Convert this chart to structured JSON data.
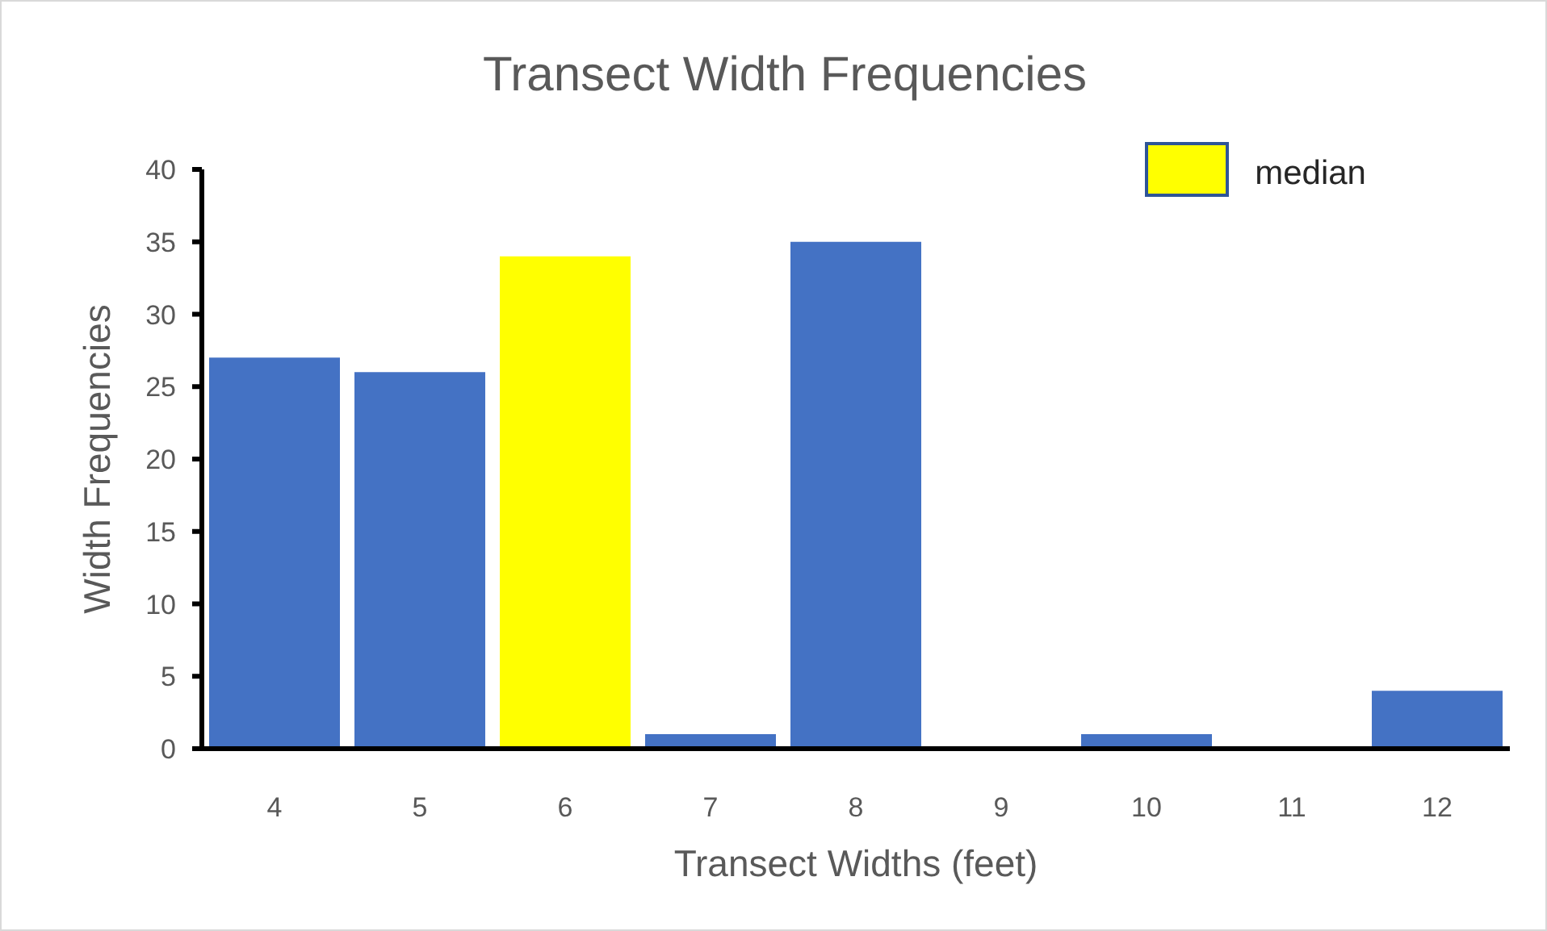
{
  "chart_data": {
    "type": "bar",
    "title": "Transect Width Frequencies",
    "xlabel": "Transect Widths (feet)",
    "ylabel": "Width Frequencies",
    "categories": [
      "4",
      "5",
      "6",
      "7",
      "8",
      "9",
      "10",
      "11",
      "12"
    ],
    "series": [
      {
        "color": "#4472c4",
        "values": [
          27,
          26,
          null,
          1,
          35,
          0,
          1,
          0,
          4
        ]
      },
      {
        "name": "median",
        "color": "#ffff00",
        "values": [
          null,
          null,
          34,
          null,
          null,
          null,
          null,
          null,
          null
        ]
      }
    ],
    "stacked": true,
    "ylim": [
      0,
      40
    ],
    "yticks": [
      0,
      5,
      10,
      15,
      20,
      25,
      30,
      35,
      40
    ],
    "legend": "top right"
  }
}
